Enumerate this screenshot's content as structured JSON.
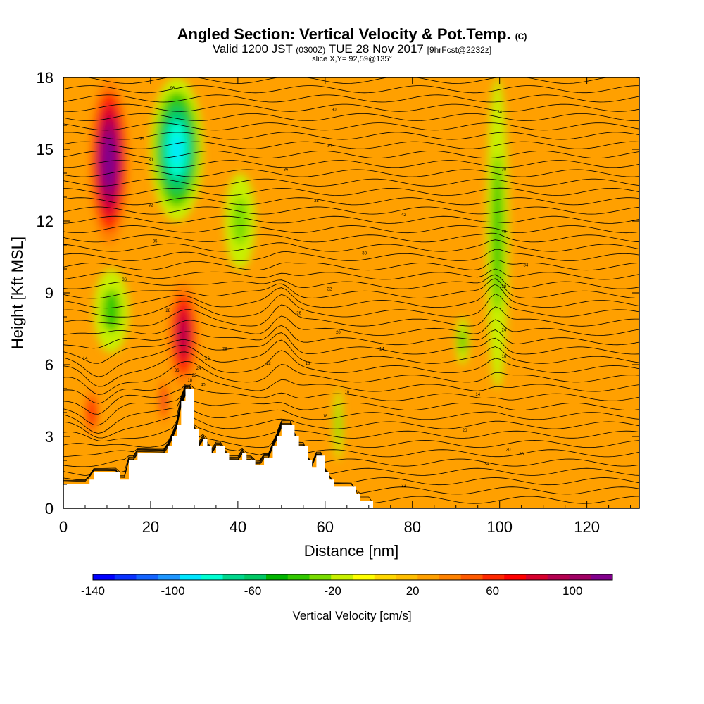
{
  "title": {
    "main": "Angled Section: Vertical Velocity & Pot.Temp.",
    "main_suffix": "(C)",
    "valid_prefix": "Valid 1200 JST",
    "valid_utc": "(0300Z)",
    "valid_date": "TUE 28 Nov 2017",
    "valid_fcst": "[9hrFcst@2232z]",
    "slice": "slice X,Y= 92,59@135°"
  },
  "chart_data": {
    "type": "heatmap",
    "xlabel": "Distance [nm]",
    "ylabel": "Height [Kft MSL]",
    "xlim": [
      0,
      132
    ],
    "ylim": [
      0,
      18
    ],
    "x_ticks": [
      0,
      20,
      40,
      60,
      80,
      100,
      120
    ],
    "y_ticks": [
      0,
      3,
      6,
      9,
      12,
      15,
      18
    ],
    "colorbar": {
      "label": "Vertical Velocity [cm/s]",
      "min": -140,
      "max": 120,
      "step": 10,
      "tick_labels": [
        -140,
        -100,
        -60,
        -20,
        20,
        60,
        100
      ],
      "colors": [
        "#0000ff",
        "#0a32ff",
        "#1464ff",
        "#1e96ff",
        "#00e6ff",
        "#00ffd2",
        "#00d78c",
        "#00c864",
        "#00b400",
        "#32c800",
        "#78dc00",
        "#c8f000",
        "#ffff00",
        "#ffd700",
        "#ffbe00",
        "#ffa000",
        "#ff8200",
        "#ff5a00",
        "#ff2800",
        "#ff0000",
        "#d7002d",
        "#b40050",
        "#a00064",
        "#82008c"
      ]
    },
    "series": [
      {
        "name": "Vertical Velocity",
        "unit": "cm/s"
      },
      {
        "name": "Pot.Temp.",
        "unit": "C"
      }
    ],
    "features": [
      {
        "kind": "updraft",
        "x": [
          6,
          15
        ],
        "y": [
          11,
          18
        ],
        "value": 110
      },
      {
        "kind": "updraft",
        "x": [
          5,
          8
        ],
        "y": [
          3,
          5
        ],
        "value": 50
      },
      {
        "kind": "downdraft",
        "x": [
          7,
          15
        ],
        "y": [
          6.5,
          10
        ],
        "value": -40
      },
      {
        "kind": "downdraft",
        "x": [
          20,
          32
        ],
        "y": [
          12,
          18
        ],
        "value": -90
      },
      {
        "kind": "updraft",
        "x": [
          24,
          31
        ],
        "y": [
          5,
          9.5
        ],
        "value": 70
      },
      {
        "kind": "updraft",
        "x": [
          22,
          24
        ],
        "y": [
          3.5,
          5.5
        ],
        "value": 60
      },
      {
        "kind": "downdraft",
        "x": [
          37,
          44
        ],
        "y": [
          10,
          14
        ],
        "value": -30
      },
      {
        "kind": "downdraft",
        "x": [
          62,
          64
        ],
        "y": [
          2,
          5
        ],
        "value": -30
      },
      {
        "kind": "downdraft",
        "x": [
          97,
          102
        ],
        "y": [
          5,
          18
        ],
        "value": -40
      },
      {
        "kind": "downdraft",
        "x": [
          90,
          93
        ],
        "y": [
          6,
          8
        ],
        "value": -40
      }
    ],
    "terrain_top_kft": [
      [
        0,
        1
      ],
      [
        6,
        1
      ],
      [
        6,
        1.2
      ],
      [
        7,
        1.2
      ],
      [
        7,
        1.5
      ],
      [
        13,
        1.5
      ],
      [
        13,
        1.2
      ],
      [
        15,
        1.2
      ],
      [
        15,
        2
      ],
      [
        17,
        2
      ],
      [
        17,
        2.3
      ],
      [
        24,
        2.3
      ],
      [
        24,
        2.6
      ],
      [
        25,
        2.6
      ],
      [
        25,
        3
      ],
      [
        26,
        3
      ],
      [
        26,
        3.5
      ],
      [
        27,
        3.5
      ],
      [
        27,
        4.5
      ],
      [
        28,
        4.5
      ],
      [
        28,
        5
      ],
      [
        30,
        5
      ],
      [
        30,
        3.3
      ],
      [
        31,
        3.3
      ],
      [
        31,
        2.6
      ],
      [
        32,
        2.6
      ],
      [
        32,
        2.9
      ],
      [
        33,
        2.9
      ],
      [
        33,
        2.6
      ],
      [
        34,
        2.6
      ],
      [
        34,
        2.3
      ],
      [
        35,
        2.3
      ],
      [
        35,
        2.6
      ],
      [
        37,
        2.6
      ],
      [
        37,
        2.3
      ],
      [
        38,
        2.3
      ],
      [
        38,
        2
      ],
      [
        41,
        2
      ],
      [
        41,
        2.3
      ],
      [
        42,
        2.3
      ],
      [
        42,
        2
      ],
      [
        44,
        2
      ],
      [
        44,
        1.8
      ],
      [
        46,
        1.8
      ],
      [
        46,
        2.1
      ],
      [
        48,
        2.1
      ],
      [
        48,
        2.6
      ],
      [
        49,
        2.6
      ],
      [
        49,
        3
      ],
      [
        50,
        3
      ],
      [
        50,
        3.5
      ],
      [
        53,
        3.5
      ],
      [
        53,
        3
      ],
      [
        54,
        3
      ],
      [
        54,
        2.6
      ],
      [
        56,
        2.6
      ],
      [
        56,
        2
      ],
      [
        57,
        2
      ],
      [
        57,
        1.7
      ],
      [
        58,
        1.7
      ],
      [
        58,
        2.2
      ],
      [
        60,
        2.2
      ],
      [
        60,
        1.5
      ],
      [
        61,
        1.5
      ],
      [
        61,
        1.2
      ],
      [
        62,
        1.2
      ],
      [
        62,
        0.9
      ],
      [
        67,
        0.9
      ],
      [
        67,
        0.6
      ],
      [
        68,
        0.6
      ],
      [
        68,
        0.3
      ],
      [
        71,
        0.3
      ],
      [
        71,
        0
      ],
      [
        132,
        0
      ]
    ],
    "contour_labels": [
      "96",
      "90",
      "34",
      "34",
      "34",
      "30",
      "36",
      "38",
      "38",
      "32",
      "42",
      "40",
      "38",
      "35",
      "34",
      "36",
      "32",
      "30",
      "28",
      "26",
      "24",
      "20",
      "16",
      "14",
      "18",
      "14",
      "12",
      "10",
      "14",
      "18",
      "20",
      "36",
      "34",
      "32",
      "30",
      "28",
      "26",
      "24",
      "22",
      "18",
      "30",
      "36",
      "40"
    ]
  }
}
